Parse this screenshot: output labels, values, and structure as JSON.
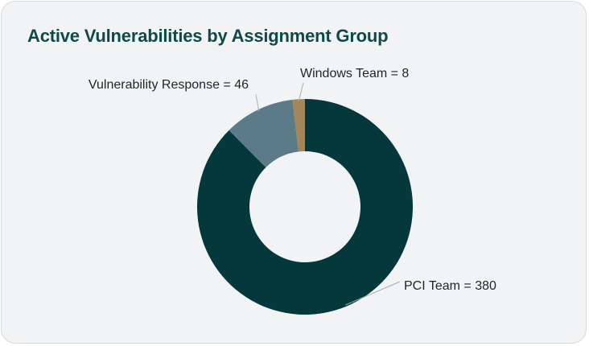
{
  "card": {
    "title": "Active Vulnerabilities by Assignment Group"
  },
  "chart_data": {
    "type": "pie",
    "donut": true,
    "title": "Active Vulnerabilities by Assignment Group",
    "categories": [
      "PCI Team",
      "Vulnerability Response",
      "Windows Team"
    ],
    "values": [
      380,
      46,
      8
    ],
    "labels": [
      "PCI Team = 380",
      "Vulnerability Response = 46",
      "Windows Team = 8"
    ],
    "colors": [
      "#04383b",
      "#5a7b87",
      "#a3875a"
    ],
    "start": "12 o'clock",
    "direction": "clockwise",
    "legend": "none"
  }
}
